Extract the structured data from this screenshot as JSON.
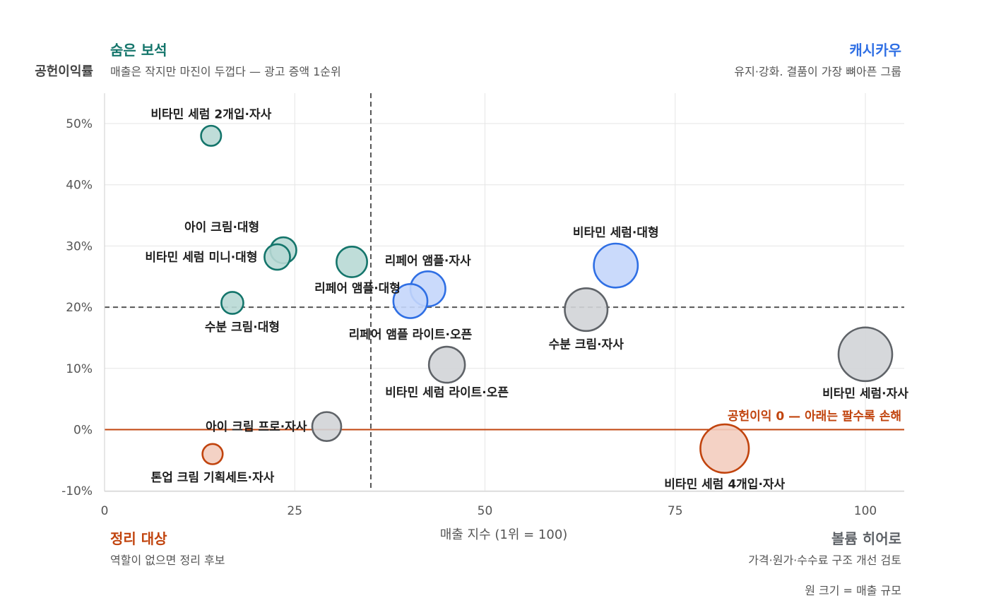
{
  "chart_data": {
    "type": "scatter",
    "xlabel": "매출 지수 (1위 = 100)",
    "ylabel": "공헌이익률",
    "xlim": [
      0,
      105
    ],
    "ylim": [
      -10,
      55
    ],
    "x_ticks": [
      {
        "value": 0,
        "label": "0"
      },
      {
        "value": 25,
        "label": "25"
      },
      {
        "value": 50,
        "label": "50"
      },
      {
        "value": 75,
        "label": "75"
      },
      {
        "value": 100,
        "label": "100"
      }
    ],
    "y_ticks": [
      {
        "value": -10,
        "label": "-10%"
      },
      {
        "value": 0,
        "label": "0%"
      },
      {
        "value": 10,
        "label": "10%"
      },
      {
        "value": 20,
        "label": "20%"
      },
      {
        "value": 30,
        "label": "30%"
      },
      {
        "value": 40,
        "label": "40%"
      },
      {
        "value": 50,
        "label": "50%"
      }
    ],
    "grid": true,
    "threshold_x": 35,
    "threshold_y": 20,
    "zero_line": {
      "value": 0,
      "label": "공헌이익 0 — 아래는 팔수록 손해",
      "color": "#c1440e"
    },
    "size_note": "원 크기 = 매출 규모",
    "groups": {
      "hidden_gem": {
        "title": "숨은 보석",
        "subtitle": "매출은 작지만 마진이 두껍다 — 광고 증액 1순위",
        "color": "#14756b",
        "fill": "#b8d9d5"
      },
      "cash_cow": {
        "title": "캐시카우",
        "subtitle": "유지·강화. 결품이 가장 뼈아픈 그룹",
        "color": "#2f6fe4",
        "fill": "#c4d6fb"
      },
      "cleanup": {
        "title": "정리 대상",
        "subtitle": "역할이 없으면 정리 후보",
        "color": "#c1440e",
        "fill": "#f3cdbf"
      },
      "volume_hero": {
        "title": "볼륨 히어로",
        "subtitle": "가격·원가·수수료 구조 개선 검토",
        "color": "#5f6368",
        "fill": "#d2d4d7"
      }
    },
    "points": [
      {
        "name": "비타민 세럼 2개입·자사",
        "x": 14,
        "y": 48,
        "size": 14,
        "group": "hidden_gem"
      },
      {
        "name": "아이 크림·대형",
        "x": 23.5,
        "y": 29.3,
        "size": 23.5,
        "group": "hidden_gem"
      },
      {
        "name": "비타민 세럼 미니·대형",
        "x": 22.7,
        "y": 28.2,
        "size": 22.7,
        "group": "hidden_gem"
      },
      {
        "name": "리페어 앰플·대형",
        "x": 32.5,
        "y": 27.4,
        "size": 32.5,
        "group": "hidden_gem"
      },
      {
        "name": "수분 크림·대형",
        "x": 16.8,
        "y": 20.7,
        "size": 16.8,
        "group": "hidden_gem"
      },
      {
        "name": "리페어 앰플·자사",
        "x": 42.5,
        "y": 23,
        "size": 42.5,
        "group": "cash_cow"
      },
      {
        "name": "리페어 앰플 라이트·오픈",
        "x": 40.2,
        "y": 21,
        "size": 40.2,
        "group": "cash_cow"
      },
      {
        "name": "비타민 세럼·대형",
        "x": 67.2,
        "y": 26.8,
        "size": 67.2,
        "group": "cash_cow"
      },
      {
        "name": "수분 크림·자사",
        "x": 63.3,
        "y": 19.6,
        "size": 63.3,
        "group": "volume_hero"
      },
      {
        "name": "비타민 세럼 라이트·오픈",
        "x": 45,
        "y": 10.6,
        "size": 45,
        "group": "volume_hero"
      },
      {
        "name": "비타민 세럼·자사",
        "x": 100,
        "y": 12.3,
        "size": 100,
        "group": "volume_hero"
      },
      {
        "name": "아이 크림 프로·자사",
        "x": 29.2,
        "y": 0.5,
        "size": 29.2,
        "group": "volume_hero"
      },
      {
        "name": "톤업 크림 기획세트·자사",
        "x": 14.2,
        "y": -4,
        "size": 14.2,
        "group": "cleanup"
      },
      {
        "name": "비타민 세럼 4개입·자사",
        "x": 81.5,
        "y": -3.1,
        "size": 81.5,
        "group": "cleanup"
      }
    ]
  }
}
